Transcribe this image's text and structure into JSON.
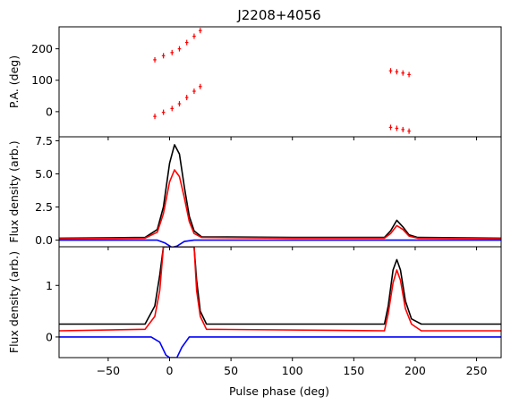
{
  "chart_data": {
    "type": "line",
    "title": "J2208+4056",
    "xlabel": "Pulse phase (deg)",
    "xlim": [
      -90,
      270
    ],
    "xticks": [
      -50,
      0,
      50,
      100,
      150,
      200,
      250
    ],
    "colors": {
      "total": "#000000",
      "linear": "#ff0000",
      "circular": "#0000ff"
    },
    "panels": [
      {
        "name": "pa",
        "ylabel": "P.A. (deg)",
        "ylim": [
          -80,
          270
        ],
        "yticks": [
          0,
          100,
          200
        ],
        "series": [
          {
            "color": "#ff0000",
            "marker": "errorbar",
            "points": [
              [
                -12,
                165
              ],
              [
                -5,
                178
              ],
              [
                2,
                188
              ],
              [
                8,
                200
              ],
              [
                14,
                220
              ],
              [
                20,
                240
              ],
              [
                25,
                258
              ]
            ]
          },
          {
            "color": "#ff0000",
            "marker": "errorbar",
            "points": [
              [
                -12,
                -15
              ],
              [
                -5,
                -2
              ],
              [
                2,
                10
              ],
              [
                8,
                25
              ],
              [
                14,
                45
              ],
              [
                20,
                65
              ],
              [
                25,
                80
              ]
            ]
          },
          {
            "color": "#ff0000",
            "marker": "errorbar",
            "points": [
              [
                180,
                130
              ],
              [
                185,
                127
              ],
              [
                190,
                123
              ],
              [
                195,
                118
              ]
            ]
          },
          {
            "color": "#ff0000",
            "marker": "errorbar",
            "points": [
              [
                180,
                -50
              ],
              [
                185,
                -53
              ],
              [
                190,
                -57
              ],
              [
                195,
                -62
              ]
            ]
          }
        ]
      },
      {
        "name": "profile",
        "ylabel": "Flux density (arb.)",
        "ylim": [
          -0.5,
          7.8
        ],
        "yticks": [
          0.0,
          2.5,
          5.0,
          7.5
        ],
        "series": [
          {
            "color": "#000000",
            "points": [
              [
                -90,
                0.15
              ],
              [
                -20,
                0.2
              ],
              [
                -10,
                0.8
              ],
              [
                -5,
                2.5
              ],
              [
                0,
                5.8
              ],
              [
                4,
                7.2
              ],
              [
                8,
                6.5
              ],
              [
                12,
                4.0
              ],
              [
                16,
                1.8
              ],
              [
                20,
                0.7
              ],
              [
                26,
                0.25
              ],
              [
                100,
                0.2
              ],
              [
                175,
                0.2
              ],
              [
                180,
                0.7
              ],
              [
                185,
                1.5
              ],
              [
                190,
                1.0
              ],
              [
                195,
                0.4
              ],
              [
                202,
                0.2
              ],
              [
                270,
                0.15
              ]
            ]
          },
          {
            "color": "#ff0000",
            "points": [
              [
                -90,
                0.1
              ],
              [
                -20,
                0.15
              ],
              [
                -10,
                0.6
              ],
              [
                -5,
                2.0
              ],
              [
                0,
                4.4
              ],
              [
                4,
                5.3
              ],
              [
                8,
                4.8
              ],
              [
                12,
                3.2
              ],
              [
                16,
                1.4
              ],
              [
                20,
                0.5
              ],
              [
                26,
                0.2
              ],
              [
                100,
                0.15
              ],
              [
                175,
                0.15
              ],
              [
                180,
                0.5
              ],
              [
                185,
                1.1
              ],
              [
                190,
                0.8
              ],
              [
                195,
                0.3
              ],
              [
                202,
                0.15
              ],
              [
                270,
                0.1
              ]
            ]
          },
          {
            "color": "#0000ff",
            "points": [
              [
                -90,
                0.0
              ],
              [
                -10,
                0.0
              ],
              [
                -4,
                -0.2
              ],
              [
                2,
                -0.55
              ],
              [
                6,
                -0.45
              ],
              [
                12,
                -0.1
              ],
              [
                20,
                0.0
              ],
              [
                270,
                0.0
              ]
            ]
          }
        ]
      },
      {
        "name": "zoom",
        "ylabel": "Flux density (arb.)",
        "ylim": [
          -0.4,
          1.75
        ],
        "yticks": [
          0,
          1
        ],
        "series": [
          {
            "color": "#000000",
            "points": [
              [
                -90,
                0.25
              ],
              [
                -20,
                0.25
              ],
              [
                -12,
                0.6
              ],
              [
                -8,
                1.2
              ],
              [
                -5,
                1.75
              ],
              [
                20,
                1.75
              ],
              [
                22,
                1.1
              ],
              [
                25,
                0.5
              ],
              [
                30,
                0.25
              ],
              [
                175,
                0.25
              ],
              [
                178,
                0.6
              ],
              [
                182,
                1.3
              ],
              [
                185,
                1.5
              ],
              [
                188,
                1.3
              ],
              [
                192,
                0.7
              ],
              [
                197,
                0.35
              ],
              [
                205,
                0.25
              ],
              [
                270,
                0.25
              ]
            ]
          },
          {
            "color": "#ff0000",
            "points": [
              [
                -90,
                0.12
              ],
              [
                -20,
                0.15
              ],
              [
                -12,
                0.4
              ],
              [
                -8,
                0.9
              ],
              [
                -5,
                1.75
              ],
              [
                20,
                1.75
              ],
              [
                22,
                0.9
              ],
              [
                25,
                0.4
              ],
              [
                30,
                0.15
              ],
              [
                175,
                0.12
              ],
              [
                178,
                0.45
              ],
              [
                182,
                1.05
              ],
              [
                185,
                1.3
              ],
              [
                188,
                1.1
              ],
              [
                192,
                0.55
              ],
              [
                197,
                0.25
              ],
              [
                205,
                0.12
              ],
              [
                270,
                0.12
              ]
            ]
          },
          {
            "color": "#0000ff",
            "points": [
              [
                -90,
                0.0
              ],
              [
                -15,
                0.0
              ],
              [
                -8,
                -0.1
              ],
              [
                -3,
                -0.35
              ],
              [
                0,
                -0.4
              ],
              [
                6,
                -0.4
              ],
              [
                10,
                -0.2
              ],
              [
                16,
                0.0
              ],
              [
                270,
                0.0
              ]
            ]
          }
        ]
      }
    ]
  }
}
